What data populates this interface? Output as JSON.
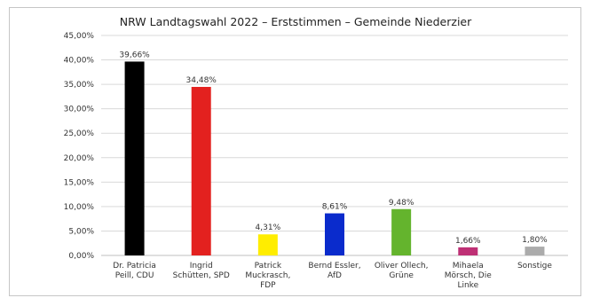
{
  "chart_data": {
    "type": "bar",
    "title": "NRW Landtagswahl 2022 – Erststimmen – Gemeinde Niederzier",
    "categories": [
      [
        "Dr. Patricia",
        "Peill, CDU"
      ],
      [
        "Ingrid",
        "Schütten, SPD"
      ],
      [
        "Patrick",
        "Muckrasch,",
        "FDP"
      ],
      [
        "Bernd Essler,",
        "AfD"
      ],
      [
        "Oliver Ollech,",
        "Grüne"
      ],
      [
        "Mihaela",
        "Mörsch, Die",
        "Linke"
      ],
      [
        "Sonstige"
      ]
    ],
    "values": [
      39.66,
      34.48,
      4.31,
      8.61,
      9.48,
      1.66,
      1.8
    ],
    "data_labels": [
      "39,66%",
      "34,48%",
      "4,31%",
      "8,61%",
      "9,48%",
      "1,66%",
      "1,80%"
    ],
    "colors": [
      "#000000",
      "#e3211f",
      "#ffed00",
      "#0a2bcc",
      "#64b42d",
      "#be3075",
      "#ababab"
    ],
    "ylim": [
      0,
      45
    ],
    "yticks": [
      "0,00%",
      "5,00%",
      "10,00%",
      "15,00%",
      "20,00%",
      "25,00%",
      "30,00%",
      "35,00%",
      "40,00%",
      "45,00%"
    ],
    "ytick_values": [
      0,
      5,
      10,
      15,
      20,
      25,
      30,
      35,
      40,
      45
    ],
    "grid": true,
    "xlabel": "",
    "ylabel": ""
  }
}
